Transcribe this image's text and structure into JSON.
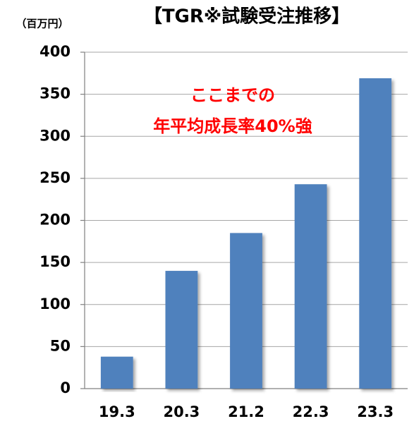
{
  "chart_data": {
    "type": "bar",
    "title": "【TGR※試験受注推移】",
    "y_label": "（百万円）",
    "annotation": [
      "ここまでの",
      "年平均成長率40%強"
    ],
    "categories": [
      "19.3",
      "20.3",
      "21.2",
      "22.3",
      "23.3"
    ],
    "values": [
      38,
      140,
      185,
      243,
      369
    ],
    "color": "#4f81bd",
    "annotation_color": "#ff0000",
    "ylim": [
      0,
      400
    ],
    "yticks": [
      0,
      50,
      100,
      150,
      200,
      250,
      300,
      350,
      400
    ],
    "grid": true
  }
}
